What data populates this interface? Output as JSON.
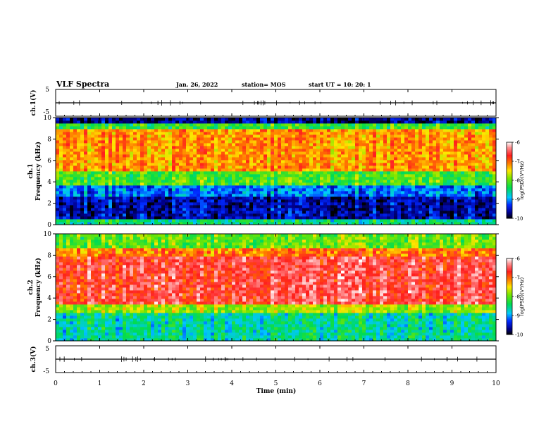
{
  "header": {
    "title": "VLF Spectra",
    "date": "Jan. 26, 2022",
    "station": "station= MOS",
    "start_ut": "start  UT =   10: 20: 1"
  },
  "colorbar": {
    "label": "log(PSD)(V²/Hz)",
    "ticks": [
      "-6",
      "-7",
      "-8",
      "-9",
      "-10"
    ],
    "colors": [
      "#ffffff",
      "#ff2020",
      "#ffe000",
      "#00e000",
      "#00c8ff",
      "#0000d0",
      "#000000"
    ]
  },
  "chart_data": [
    {
      "type": "line",
      "name": "ch1-waveform",
      "ylabel": "ch.1(V)",
      "ylim": [
        -5,
        5
      ],
      "yticks": [
        "5",
        "-5"
      ],
      "x": [
        0,
        10
      ],
      "y": [
        0,
        0
      ]
    },
    {
      "type": "heatmap",
      "name": "ch1-spectrogram",
      "ylabel": "ch.1\nFrequency (kHz)",
      "ylim": [
        0,
        10
      ],
      "yticks": [
        "0",
        "2",
        "4",
        "6",
        "8",
        "10"
      ],
      "xlim": [
        0,
        10
      ],
      "value_range": [
        -10,
        -6
      ],
      "bands": [
        {
          "f": [
            0,
            0.5
          ],
          "level": -8.5
        },
        {
          "f": [
            0.5,
            2.5
          ],
          "level": -9.6
        },
        {
          "f": [
            2.5,
            3.8
          ],
          "level": -9.1
        },
        {
          "f": [
            3.8,
            5
          ],
          "level": -8.1
        },
        {
          "f": [
            5,
            9
          ],
          "level": -7.2
        },
        {
          "f": [
            9,
            9.4
          ],
          "level": -8.2
        },
        {
          "f": [
            9.4,
            10
          ],
          "level": -9.7
        }
      ]
    },
    {
      "type": "heatmap",
      "name": "ch2-spectrogram",
      "ylabel": "ch.2\nFrequency (kHz)",
      "ylim": [
        0,
        10
      ],
      "yticks": [
        "0",
        "2",
        "4",
        "6",
        "8",
        "10"
      ],
      "xlim": [
        0,
        10
      ],
      "value_range": [
        -10,
        -6
      ],
      "bands": [
        {
          "f": [
            0,
            2.5
          ],
          "level": -8.6
        },
        {
          "f": [
            2.5,
            3.5
          ],
          "level": -7.8
        },
        {
          "f": [
            3.5,
            7.8
          ],
          "level": -6.6
        },
        {
          "f": [
            7.8,
            8.6
          ],
          "level": -7.1
        },
        {
          "f": [
            8.6,
            10
          ],
          "level": -8.0
        }
      ]
    },
    {
      "type": "line",
      "name": "ch3-waveform",
      "ylabel": "ch.3(V)",
      "ylim": [
        -5,
        5
      ],
      "yticks": [
        "5",
        "-5"
      ],
      "x": [
        0,
        10
      ],
      "y": [
        0,
        0
      ]
    }
  ],
  "xaxis": {
    "xlabel": "Time  (min)",
    "ticks": [
      "0",
      "1",
      "2",
      "3",
      "4",
      "5",
      "6",
      "7",
      "8",
      "9",
      "10"
    ],
    "xlim": [
      0,
      10
    ]
  }
}
